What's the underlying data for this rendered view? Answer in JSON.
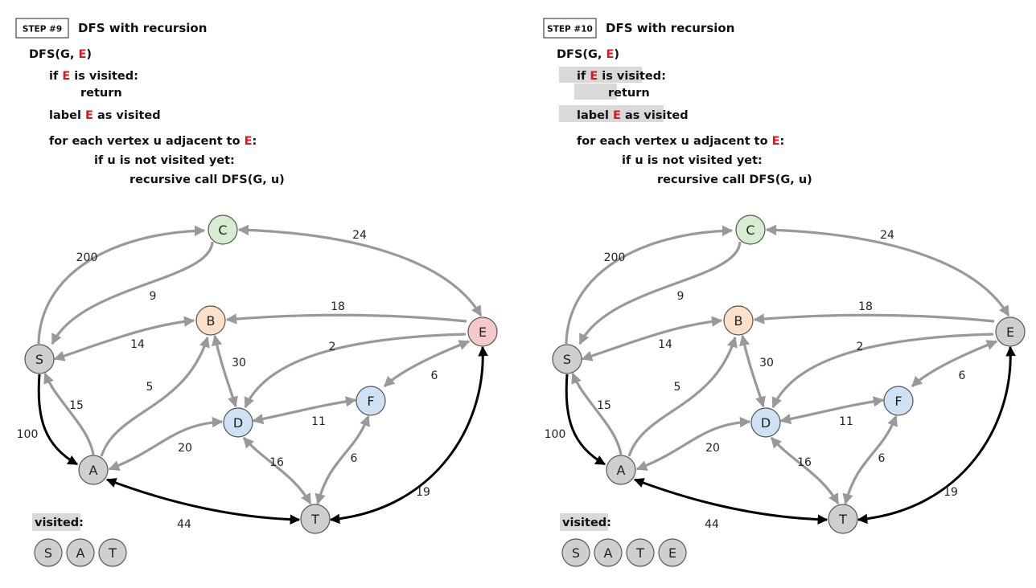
{
  "panels": [
    {
      "step_label": "STEP #9",
      "title": "DFS with recursion",
      "code": {
        "func_prefix": "DFS(G, ",
        "param": "E",
        "func_suffix": ")",
        "if_prefix": "if ",
        "if_suffix": " is visited:",
        "return": "return",
        "label_prefix": "label ",
        "label_suffix": " as visited",
        "for_prefix": "for each vertex u adjacent to ",
        "for_suffix": ":",
        "if_u": "if u is not visited yet:",
        "recursive": "recursive call DFS(G, u)"
      },
      "highlight_lines": [],
      "visited_label": "visited:",
      "visited": [
        "S",
        "A",
        "T"
      ],
      "node_colors": {
        "S": "#cfcfcf",
        "A": "#cfcfcf",
        "T": "#cfcfcf",
        "C": "#d8ecd2",
        "B": "#fde0c8",
        "E": "#f6c8cc",
        "D": "#cfe2f5",
        "F": "#cfe2f5"
      },
      "black_edges": [
        "S-A",
        "A-T",
        "T-E"
      ]
    },
    {
      "step_label": "STEP #10",
      "title": "DFS with recursion",
      "code": {
        "func_prefix": "DFS(G, ",
        "param": "E",
        "func_suffix": ")",
        "if_prefix": "if ",
        "if_suffix": " is visited:",
        "return": "return",
        "label_prefix": "label ",
        "label_suffix": " as visited",
        "for_prefix": "for each vertex u adjacent to ",
        "for_suffix": ":",
        "if_u": "if u is not visited yet:",
        "recursive": "recursive call DFS(G, u)"
      },
      "highlight_lines": [
        "if",
        "label"
      ],
      "visited_label": "visited:",
      "visited": [
        "S",
        "A",
        "T",
        "E"
      ],
      "node_colors": {
        "S": "#cfcfcf",
        "A": "#cfcfcf",
        "T": "#cfcfcf",
        "C": "#d8ecd2",
        "B": "#fde0c8",
        "E": "#cfcfcf",
        "D": "#cfe2f5",
        "F": "#cfe2f5"
      },
      "black_edges": [
        "S-A",
        "A-T",
        "T-E"
      ]
    }
  ],
  "graph": {
    "nodes": [
      "S",
      "A",
      "T",
      "C",
      "B",
      "E",
      "D",
      "F"
    ],
    "edges": [
      {
        "id": "S-C",
        "weight": "200"
      },
      {
        "id": "C-S",
        "weight": "9"
      },
      {
        "id": "S-B",
        "weight": "14"
      },
      {
        "id": "A-S",
        "weight": "15"
      },
      {
        "id": "S-A",
        "weight": "100"
      },
      {
        "id": "A-B",
        "weight": "5"
      },
      {
        "id": "B-D",
        "weight": "30"
      },
      {
        "id": "A-D",
        "weight": "20"
      },
      {
        "id": "C-E",
        "weight": "24"
      },
      {
        "id": "E-B",
        "weight": "18"
      },
      {
        "id": "E-D",
        "weight": "2"
      },
      {
        "id": "E-F",
        "weight": "6"
      },
      {
        "id": "D-F",
        "weight": "11"
      },
      {
        "id": "D-T",
        "weight": "16"
      },
      {
        "id": "T-F",
        "weight": "6"
      },
      {
        "id": "A-T",
        "weight": "44"
      },
      {
        "id": "T-E",
        "weight": "19"
      }
    ]
  },
  "colors": {
    "edge_gray": "#999999",
    "edge_black": "#000000",
    "highlight": "#d9d9d9",
    "param_red": "#e0141e"
  }
}
